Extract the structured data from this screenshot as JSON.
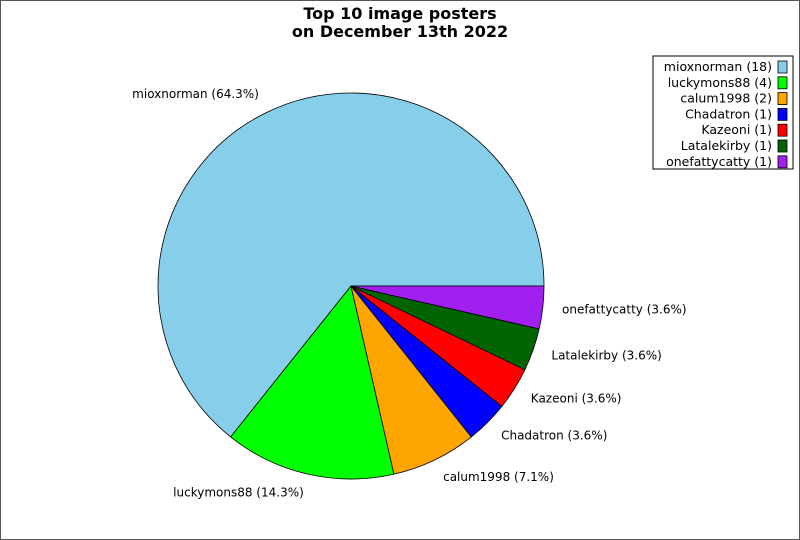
{
  "chart_data": {
    "type": "pie",
    "title": "Top 10 image posters",
    "subtitle": "on December 13th 2022",
    "legend_placement": "top-right",
    "slices": [
      {
        "name": "mioxnorman",
        "value": 18,
        "percent_label": "mioxnorman (64.3%)",
        "legend_label": "mioxnorman (18)",
        "color": "#87ceeb"
      },
      {
        "name": "luckymons88",
        "value": 4,
        "percent_label": "luckymons88 (14.3%)",
        "legend_label": "luckymons88 (4)",
        "color": "#00ff00"
      },
      {
        "name": "calum1998",
        "value": 2,
        "percent_label": "calum1998 (7.1%)",
        "legend_label": "calum1998 (2)",
        "color": "#ffa500"
      },
      {
        "name": "Chadatron",
        "value": 1,
        "percent_label": "Chadatron (3.6%)",
        "legend_label": "Chadatron (1)",
        "color": "#0000ff"
      },
      {
        "name": "Kazeoni",
        "value": 1,
        "percent_label": "Kazeoni (3.6%)",
        "legend_label": "Kazeoni (1)",
        "color": "#ff0000"
      },
      {
        "name": "Latalekirby",
        "value": 1,
        "percent_label": "Latalekirby (3.6%)",
        "legend_label": "Latalekirby (1)",
        "color": "#006400"
      },
      {
        "name": "onefattycatty",
        "value": 1,
        "percent_label": "onefattycatty (3.6%)",
        "legend_label": "onefattycatty (1)",
        "color": "#a020f0"
      }
    ]
  }
}
